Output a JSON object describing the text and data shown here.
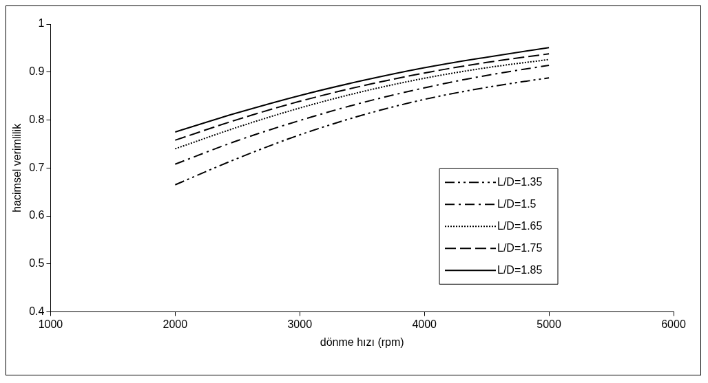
{
  "chart_data": {
    "type": "line",
    "xlabel": "dönme hızı (rpm)",
    "ylabel": "hacimsel verimlilik",
    "x": [
      2000,
      2500,
      3000,
      3500,
      4000,
      4500,
      5000
    ],
    "xlim": [
      1000,
      6000
    ],
    "xticks": [
      1000,
      2000,
      3000,
      4000,
      5000,
      6000
    ],
    "ylim": [
      0.4,
      1
    ],
    "yticks": [
      0.4,
      0.5,
      0.6,
      0.7,
      0.8,
      0.9,
      1
    ],
    "grid": false,
    "legend": "right",
    "marker": "none",
    "series": [
      {
        "name": "L/D=1.35",
        "color": "#000000",
        "line_style": "dashed",
        "values": [
          0.665,
          0.72,
          0.769,
          0.81,
          0.843,
          0.868,
          0.888
        ]
      },
      {
        "name": "L/D=1.5",
        "color": "#000000",
        "line_style": "dashed",
        "values": [
          0.708,
          0.757,
          0.799,
          0.836,
          0.867,
          0.893,
          0.914
        ]
      },
      {
        "name": "L/D=1.65",
        "color": "#000000",
        "line_style": "dotted",
        "values": [
          0.74,
          0.785,
          0.825,
          0.859,
          0.887,
          0.909,
          0.926
        ]
      },
      {
        "name": "L/D=1.75",
        "color": "#000000",
        "line_style": "dashed",
        "values": [
          0.758,
          0.801,
          0.839,
          0.871,
          0.898,
          0.92,
          0.938
        ]
      },
      {
        "name": "L/D=1.85",
        "color": "#000000",
        "line_style": "solid",
        "values": [
          0.775,
          0.815,
          0.851,
          0.882,
          0.909,
          0.931,
          0.951
        ]
      }
    ]
  }
}
